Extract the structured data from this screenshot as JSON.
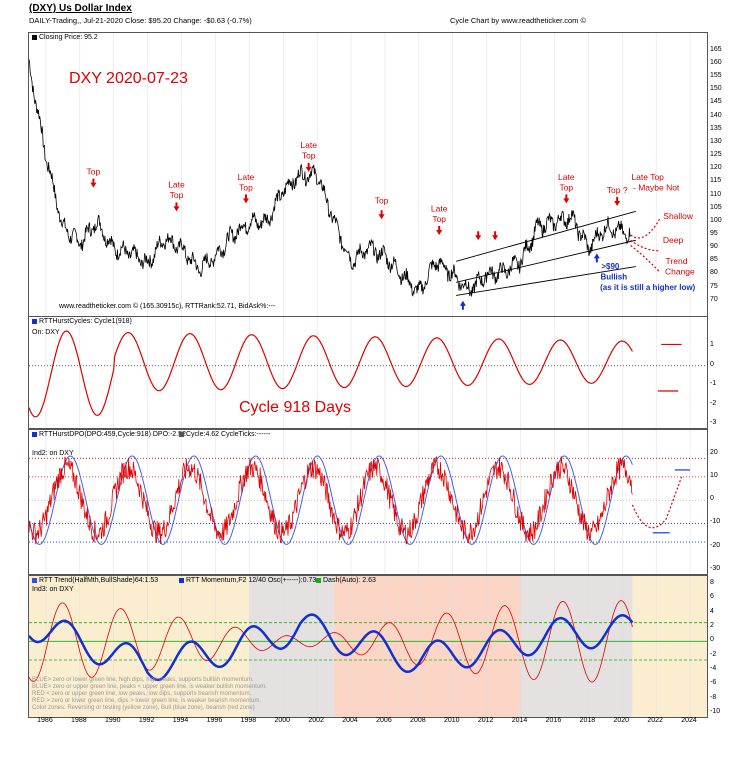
{
  "header": {
    "title": "(DXY) Us Dollar Index",
    "subtitle": "DAILY-Trading,, Jul-21-2020  Close: $95.20  Change: -$0.63  (-0.7%)",
    "source": "Cycle Chart by www.readtheticker.com ©"
  },
  "chart_data": [
    {
      "type": "line",
      "panel": "price",
      "legend": "Closing Price: 95.2",
      "title": "DXY 2020-07-23",
      "footer": "www.readtheticker.com © (165.30915c), RTTRank:52.71, BidAsk%:---",
      "x": [
        1985,
        1986,
        1987,
        1988,
        1989,
        1990,
        1991,
        1992,
        1993,
        1994,
        1995,
        1996,
        1997,
        1998,
        1999,
        2000,
        2001,
        2002,
        2003,
        2004,
        2005,
        2006,
        2007,
        2008,
        2009,
        2010,
        2011,
        2012,
        2013,
        2014,
        2015,
        2016,
        2017,
        2018,
        2019,
        2020.5
      ],
      "y": [
        160,
        125,
        98,
        92,
        100,
        90,
        88,
        84,
        94,
        90,
        82,
        87,
        95,
        100,
        100,
        112,
        118,
        118,
        100,
        85,
        90,
        87,
        80,
        73,
        85,
        80,
        74,
        80,
        81,
        85,
        98,
        100,
        102,
        90,
        98,
        95.2
      ],
      "ylim": [
        68,
        168
      ],
      "yticks": [
        70,
        75,
        80,
        85,
        90,
        95,
        100,
        105,
        110,
        115,
        120,
        125,
        130,
        135,
        140,
        145,
        150,
        155,
        160,
        165
      ],
      "annotations": [
        {
          "text": "Top",
          "x": 1988.8,
          "y": 118
        },
        {
          "text": "Late",
          "x": 1993.7,
          "y": 113
        },
        {
          "text": "Top",
          "x": 1993.7,
          "y": 109
        },
        {
          "text": "Late",
          "x": 1997.8,
          "y": 116
        },
        {
          "text": "Top",
          "x": 1997.8,
          "y": 112
        },
        {
          "text": "Late",
          "x": 2001.5,
          "y": 128
        },
        {
          "text": "Top",
          "x": 2001.5,
          "y": 124
        },
        {
          "text": "Top",
          "x": 2005.8,
          "y": 107
        },
        {
          "text": "Late",
          "x": 2009.2,
          "y": 104
        },
        {
          "text": "Top",
          "x": 2009.2,
          "y": 100
        },
        {
          "text": "Late",
          "x": 2016.7,
          "y": 116
        },
        {
          "text": "Top",
          "x": 2016.7,
          "y": 112
        },
        {
          "text": "Top ?",
          "x": 2019.7,
          "y": 111
        },
        {
          "text": "Late Top",
          "x": 2021.5,
          "y": 116
        },
        {
          "text": "- Maybe Not",
          "x": 2022,
          "y": 112
        },
        {
          "text": "Shallow",
          "x": 2023.3,
          "y": 101
        },
        {
          "text": "Deep",
          "x": 2023,
          "y": 92
        },
        {
          "text": "Trend",
          "x": 2023.2,
          "y": 84
        },
        {
          "text": "Change",
          "x": 2023.4,
          "y": 80
        },
        {
          "text": ">$90",
          "x": 2019.3,
          "y": 82
        },
        {
          "text": "Bullish",
          "x": 2019.5,
          "y": 78
        },
        {
          "text": "(as it is still  a higher low)",
          "x": 2021.5,
          "y": 74
        }
      ]
    },
    {
      "type": "line",
      "panel": "cycle",
      "legend": "RTTHurstCycles: Cycle1(918)",
      "sublabel": "On: DXY",
      "title": "Cycle 918 Days",
      "cycle_days": 918,
      "ylim": [
        -3,
        2
      ],
      "yticks": [
        -3,
        -2,
        -1,
        0,
        1
      ]
    },
    {
      "type": "line",
      "panel": "dpo",
      "legend": "RTTHurstDPO(DPO:459,Cycle:918) DPO:-2.52",
      "legend2": "Cycle:4.62 CycleTicks:------",
      "sublabel": "Ind2: on DXY",
      "ylim": [
        -30,
        25
      ],
      "yticks": [
        -30,
        -20,
        -10,
        0,
        10,
        20
      ],
      "bands": [
        18,
        10,
        -10,
        -18
      ]
    },
    {
      "type": "line",
      "panel": "trend",
      "legend": [
        "RTT Trend(HalfMth,BullShade)64:1.53",
        "RTT Momentum,F2 12/40 Osc(+-----):0.73",
        "Dash(Auto): 2.63"
      ],
      "sublabel": "Ind3: on DXY",
      "ylim": [
        -10,
        8
      ],
      "yticks": [
        -10,
        -8,
        -6,
        -4,
        -2,
        0,
        2,
        4,
        6,
        8
      ],
      "notes": [
        "BLUE> zero or lower green line, high dips, high peaks, supports bullish momentum.",
        "BLUE> zero or upper green line, peaks < upper green line, is weaker bullish momentum.",
        "RED < zero or upper green line, low peaks, low dips, supports bearish momentum.",
        "RED > zero or lower green line, dips > lower green line, is weaker bearish momentum.",
        "Color zones: Reversing or testing (yellow zone), Bull (blue zone), bearish (red zone)"
      ]
    }
  ],
  "x_axis": {
    "labels": [
      "1986",
      "1988",
      "1990",
      "1992",
      "1994",
      "1996",
      "1998",
      "2000",
      "2002",
      "2004",
      "2006",
      "2008",
      "2010",
      "2012",
      "2014",
      "2016",
      "2018",
      "2020",
      "2022",
      "2024"
    ],
    "range": [
      1985,
      2025
    ]
  },
  "colors": {
    "red": "#e00000",
    "blue": "#1030d0",
    "green": "#10b010",
    "grid": "#000000"
  }
}
